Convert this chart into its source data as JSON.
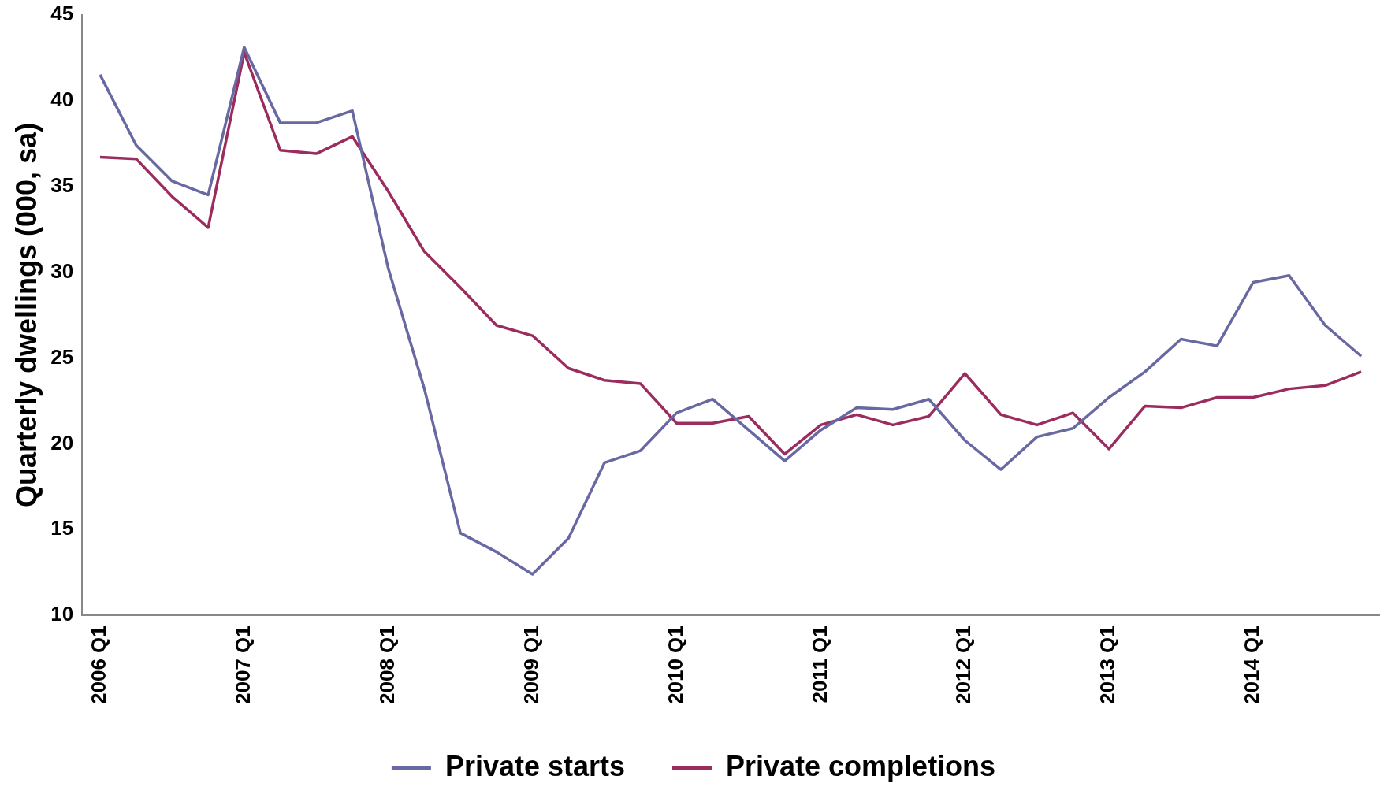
{
  "chart_data": {
    "type": "line",
    "ylabel": "Quarterly dwellings (000, sa)",
    "categories": [
      "2006 Q1",
      null,
      null,
      null,
      "2007 Q1",
      null,
      null,
      null,
      "2008 Q1",
      null,
      null,
      null,
      "2009 Q1",
      null,
      null,
      null,
      "2010 Q1",
      null,
      null,
      null,
      "2011 Q1",
      null,
      null,
      null,
      "2012 Q1",
      null,
      null,
      null,
      "2013 Q1",
      null,
      null,
      null,
      "2014 Q1",
      null,
      null,
      null
    ],
    "series": [
      {
        "name": "Private starts",
        "color": "#6868a2",
        "values": [
          41.5,
          37.4,
          35.3,
          34.5,
          43.1,
          38.7,
          38.7,
          39.4,
          30.2,
          23.2,
          14.8,
          13.7,
          12.4,
          14.5,
          18.9,
          19.6,
          21.8,
          22.6,
          20.8,
          19.0,
          20.8,
          22.1,
          22.0,
          22.6,
          20.2,
          18.5,
          20.4,
          20.9,
          22.7,
          24.2,
          26.1,
          25.7,
          29.4,
          29.8,
          26.9,
          25.1
        ]
      },
      {
        "name": "Private completions",
        "color": "#9b2c5e",
        "values": [
          36.7,
          36.6,
          34.4,
          32.6,
          42.8,
          37.1,
          36.9,
          37.9,
          34.7,
          31.2,
          29.1,
          26.9,
          26.3,
          24.4,
          23.7,
          23.5,
          21.2,
          21.2,
          21.6,
          19.4,
          21.1,
          21.7,
          21.1,
          21.6,
          24.1,
          21.7,
          21.1,
          21.8,
          19.7,
          22.2,
          22.1,
          22.7,
          22.7,
          23.2,
          23.4,
          24.2
        ]
      }
    ],
    "ylim": [
      10,
      45
    ],
    "yticks": [
      10,
      15,
      20,
      25,
      30,
      35,
      40,
      45
    ],
    "grid": false,
    "legend": "bottom",
    "marker": "none",
    "line_style": "solid"
  }
}
